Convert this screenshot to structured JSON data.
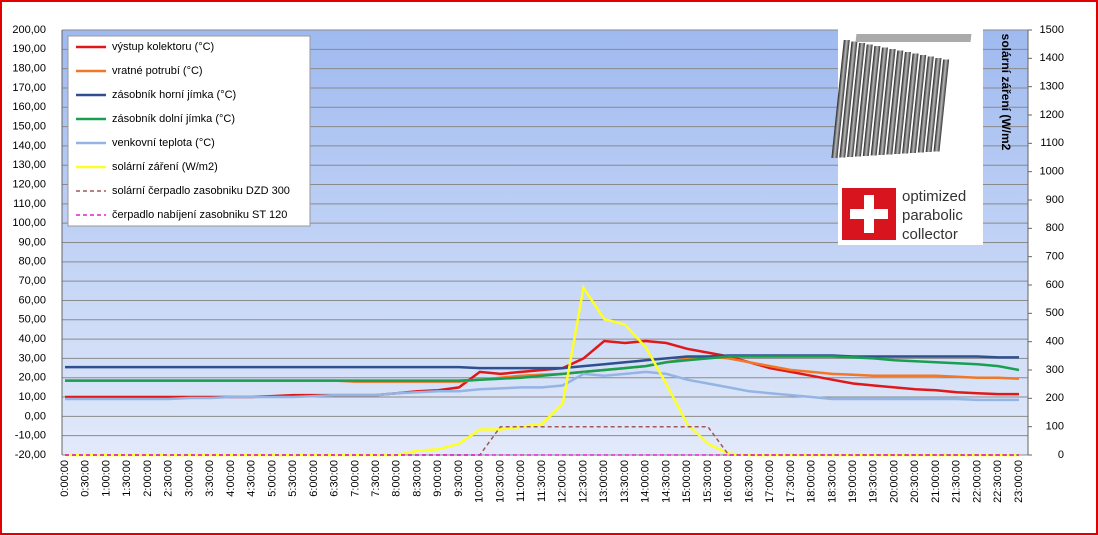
{
  "chart_data": {
    "type": "line",
    "categories": [
      "0:00:00",
      "0:30:00",
      "1:00:00",
      "1:30:00",
      "2:00:00",
      "2:30:00",
      "3:00:00",
      "3:30:00",
      "4:00:00",
      "4:30:00",
      "5:00:00",
      "5:30:00",
      "6:00:00",
      "6:30:00",
      "7:00:00",
      "7:30:00",
      "8:00:00",
      "8:30:00",
      "9:00:00",
      "9:30:00",
      "10:00:00",
      "10:30:00",
      "11:00:00",
      "11:30:00",
      "12:00:00",
      "12:30:00",
      "13:00:00",
      "13:30:00",
      "14:00:00",
      "14:30:00",
      "15:00:00",
      "15:30:00",
      "16:00:00",
      "16:30:00",
      "17:00:00",
      "17:30:00",
      "18:00:00",
      "18:30:00",
      "19:00:00",
      "19:30:00",
      "20:00:00",
      "20:30:00",
      "21:00:00",
      "21:30:00",
      "22:00:00",
      "22:30:00",
      "23:00:00"
    ],
    "series": [
      {
        "name": "výstup kolektoru (°C)",
        "color": "#e01818",
        "values": [
          10,
          10,
          10,
          10,
          10,
          10,
          10,
          10,
          10,
          10,
          10.5,
          11,
          11,
          11,
          11,
          11,
          12,
          13,
          13.5,
          15,
          23,
          22,
          23,
          24,
          25,
          30,
          39,
          38,
          39,
          38,
          35,
          33,
          31,
          28,
          25,
          23,
          21,
          19,
          17,
          16,
          15,
          14,
          13.5,
          12.5,
          12,
          11.5,
          11.5
        ]
      },
      {
        "name": "vratné potrubí (°C)",
        "color": "#f07828",
        "values": [
          18.5,
          18.5,
          18.5,
          18.5,
          18.5,
          18.5,
          18.5,
          18.5,
          18.5,
          18.5,
          18.5,
          18.5,
          18.5,
          18.5,
          18,
          18,
          18,
          18,
          18,
          18,
          19,
          20,
          21,
          21.5,
          22,
          23,
          24,
          25,
          26,
          28,
          30,
          31,
          30,
          28,
          26,
          24,
          23,
          22,
          21.5,
          21,
          21,
          21,
          21,
          20.5,
          20,
          20,
          19.5
        ]
      },
      {
        "name": "zásobník horní jímka (°C)",
        "color": "#2f4f8f",
        "values": [
          25.5,
          25.5,
          25.5,
          25.5,
          25.5,
          25.5,
          25.5,
          25.5,
          25.5,
          25.5,
          25.5,
          25.5,
          25.5,
          25.5,
          25.5,
          25.5,
          25.5,
          25.5,
          25.5,
          25.5,
          25,
          25,
          25,
          25,
          25,
          26,
          27,
          28,
          29,
          30,
          31,
          31,
          31.5,
          31.5,
          31.5,
          31.5,
          31.5,
          31.5,
          31,
          31,
          31,
          31,
          31,
          31,
          31,
          30.5,
          30.5
        ]
      },
      {
        "name": "zásobník dolní jímka  (°C)",
        "color": "#18a050",
        "values": [
          18.5,
          18.5,
          18.5,
          18.5,
          18.5,
          18.5,
          18.5,
          18.5,
          18.5,
          18.5,
          18.5,
          18.5,
          18.5,
          18.5,
          18.5,
          18.5,
          18.5,
          18.5,
          18.5,
          18.5,
          19,
          19.5,
          20,
          21,
          22,
          23,
          24,
          25,
          26,
          28,
          29,
          30,
          31,
          31,
          31,
          31,
          31,
          31,
          30.5,
          30,
          29,
          28.5,
          28,
          27.5,
          27,
          26,
          24
        ]
      },
      {
        "name": "venkovní teplota (°C)",
        "color": "#94b4e4",
        "values": [
          9,
          9,
          9,
          9,
          9,
          9,
          9.5,
          9.5,
          10,
          10,
          10,
          10,
          10.5,
          11,
          11,
          11,
          12,
          12.5,
          13,
          13,
          14,
          14.5,
          15,
          15,
          16,
          22,
          21,
          22,
          23,
          22,
          19,
          17,
          15,
          13,
          12,
          11,
          10,
          9,
          9,
          9,
          9,
          9,
          9,
          9,
          8.5,
          8.5,
          8.5
        ]
      },
      {
        "name": "solární záření (W/m2)",
        "color": "#ffff28",
        "axis": "y2",
        "values": [
          0,
          0,
          0,
          0,
          0,
          0,
          0,
          0,
          0,
          0,
          0,
          0,
          0,
          0,
          0,
          0,
          0,
          15,
          20,
          40,
          90,
          90,
          100,
          110,
          180,
          590,
          480,
          460,
          380,
          250,
          110,
          40,
          5,
          0,
          0,
          0,
          0,
          0,
          0,
          0,
          0,
          0,
          0,
          0,
          0,
          0,
          0
        ]
      },
      {
        "name": "solární čerpadlo zasobniku DZD 300",
        "color": "#a05858",
        "axis": "y2",
        "dash": "dashed",
        "values": [
          0,
          0,
          0,
          0,
          0,
          0,
          0,
          0,
          0,
          0,
          0,
          0,
          0,
          0,
          0,
          0,
          0,
          0,
          0,
          0,
          0,
          100,
          100,
          100,
          100,
          100,
          100,
          100,
          100,
          100,
          100,
          100,
          0,
          0,
          0,
          0,
          0,
          0,
          0,
          0,
          0,
          0,
          0,
          0,
          0,
          0,
          0
        ]
      },
      {
        "name": "čerpadlo nabíjení  zasobniku ST 120",
        "color": "#e020d0",
        "axis": "y2",
        "dash": "dashed",
        "values": [
          0,
          0,
          0,
          0,
          0,
          0,
          0,
          0,
          0,
          0,
          0,
          0,
          0,
          0,
          0,
          0,
          0,
          0,
          0,
          0,
          0,
          0,
          0,
          0,
          0,
          0,
          0,
          0,
          0,
          0,
          0,
          0,
          0,
          0,
          0,
          0,
          0,
          0,
          0,
          0,
          0,
          0,
          0,
          0,
          0,
          0,
          0
        ]
      }
    ],
    "ylim": [
      -20,
      200
    ],
    "yticks": [
      {
        "value": -20,
        "label": "-20,00"
      },
      {
        "value": -10,
        "label": "-10,00"
      },
      {
        "value": 0,
        "label": "0,00"
      },
      {
        "value": 10,
        "label": "10,00"
      },
      {
        "value": 20,
        "label": "20,00"
      },
      {
        "value": 30,
        "label": "30,00"
      },
      {
        "value": 40,
        "label": "40,00"
      },
      {
        "value": 50,
        "label": "50,00"
      },
      {
        "value": 60,
        "label": "60,00"
      },
      {
        "value": 70,
        "label": "70,00"
      },
      {
        "value": 80,
        "label": "80,00"
      },
      {
        "value": 90,
        "label": "90,00"
      },
      {
        "value": 100,
        "label": "100,00"
      },
      {
        "value": 110,
        "label": "110,00"
      },
      {
        "value": 120,
        "label": "120,00"
      },
      {
        "value": 130,
        "label": "130,00"
      },
      {
        "value": 140,
        "label": "140,00"
      },
      {
        "value": 150,
        "label": "150,00"
      },
      {
        "value": 160,
        "label": "160,00"
      },
      {
        "value": 170,
        "label": "170,00"
      },
      {
        "value": 180,
        "label": "180,00"
      },
      {
        "value": 190,
        "label": "190,00"
      },
      {
        "value": 200,
        "label": "200,00"
      }
    ],
    "y2lim": [
      0,
      1500
    ],
    "y2ticks": [
      0,
      100,
      200,
      300,
      400,
      500,
      600,
      700,
      800,
      900,
      1000,
      1100,
      1200,
      1300,
      1400,
      1500
    ],
    "y2_label": "solární záření (W/m2",
    "grid": true,
    "legend": "top-left",
    "image_text": [
      "optimized",
      "parabolic",
      "collector"
    ]
  }
}
